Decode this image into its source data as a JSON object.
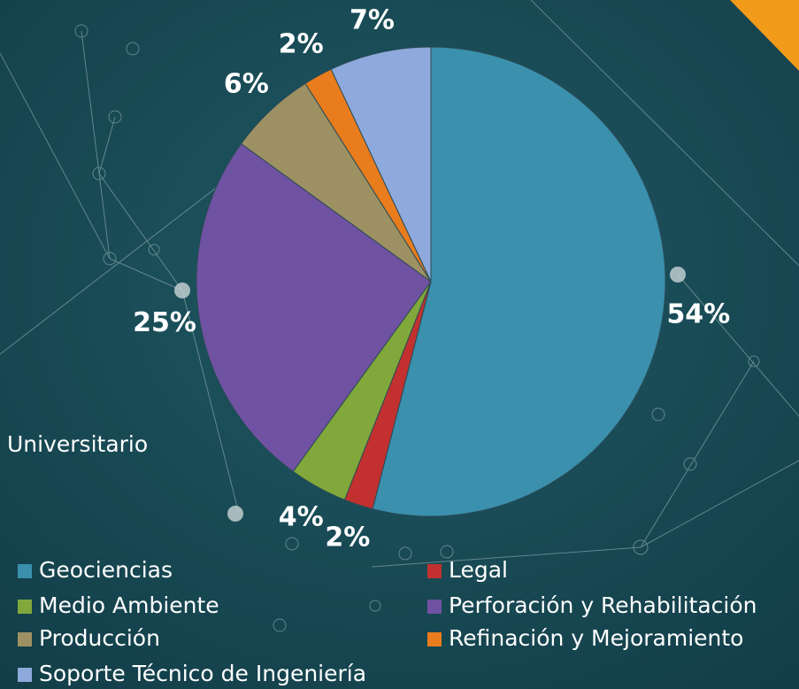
{
  "chart_data": {
    "type": "pie",
    "categories": [
      "Geociencias",
      "Legal",
      "Medio Ambiente",
      "Perforación y Rehabilitación",
      "Producción",
      "Refinación y Mejoramiento",
      "Soporte Técnico de Ingeniería"
    ],
    "values": [
      54,
      2,
      4,
      25,
      6,
      2,
      7
    ],
    "value_labels": [
      "54%",
      "2%",
      "4%",
      "25%",
      "6%",
      "2%",
      "7%"
    ],
    "colors": [
      "#3a90ad",
      "#c2312f",
      "#80a83a",
      "#7052a2",
      "#9d9163",
      "#e97c1c",
      "#8ea9dc"
    ],
    "annotation": "Universitario",
    "legend": "bottom"
  }
}
